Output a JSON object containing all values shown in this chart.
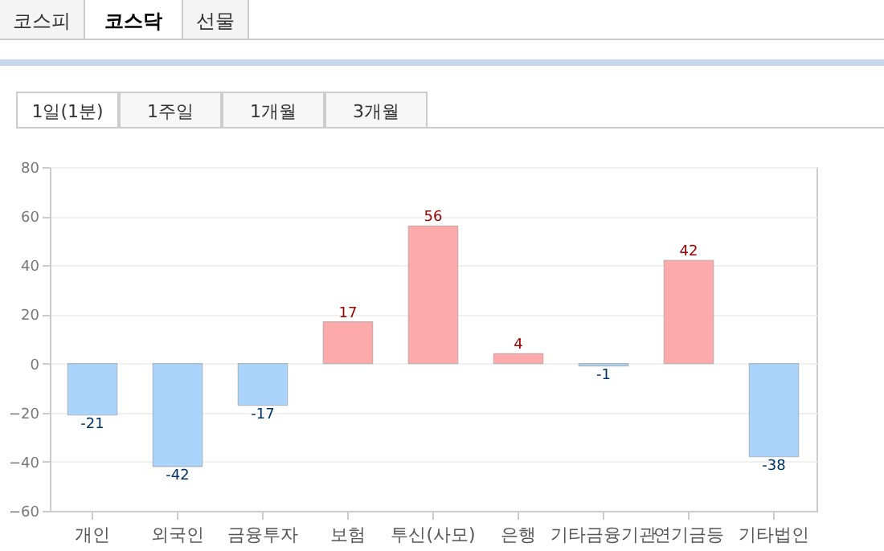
{
  "chart_data": {
    "type": "bar",
    "categories": [
      "개인",
      "외국인",
      "금융투자",
      "보험",
      "투신(사모)",
      "은행",
      "기타금융기관",
      "연기금등",
      "기타법인"
    ],
    "values": [
      -21,
      -42,
      -17,
      17,
      56,
      4,
      -1,
      42,
      -38
    ],
    "colors": [
      "#aad4fb",
      "#aad4fb",
      "#aad4fb",
      "#ffaaaa",
      "#ffaaaa",
      "#ffaaaa",
      "#aad4fb",
      "#ffaaaa",
      "#aad4fb"
    ],
    "ylim": [
      -60,
      80
    ],
    "yticks": [
      -60,
      -40,
      -20,
      0,
      20,
      40,
      60,
      80
    ],
    "grid": "y",
    "data_labels": true,
    "annotations": [
      "코스피",
      "코스닥",
      "선물",
      "1일(1분)",
      "1주일",
      "1개월",
      "3개월"
    ]
  }
}
